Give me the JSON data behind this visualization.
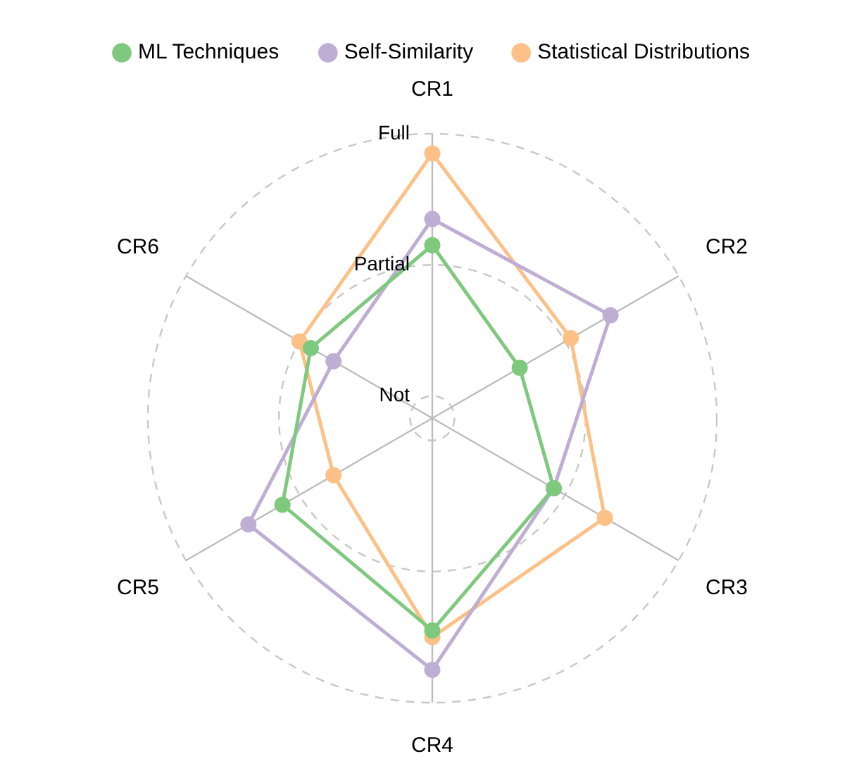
{
  "chart_data": {
    "type": "radar",
    "categories": [
      "CR1",
      "CR2",
      "CR3",
      "CR4",
      "CR5",
      "CR6"
    ],
    "series": [
      {
        "name": "ML Techniques",
        "color": "#7fc97f",
        "values": [
          1.15,
          0.6,
          0.9,
          1.45,
          1.15,
          0.9
        ]
      },
      {
        "name": "Self-Similarity",
        "color": "#beaed4",
        "values": [
          1.35,
          1.4,
          0.9,
          1.75,
          1.45,
          0.7
        ]
      },
      {
        "name": "Statistical Distributions",
        "color": "#fdc086",
        "values": [
          1.85,
          1.05,
          1.35,
          1.5,
          0.7,
          1.0
        ]
      }
    ],
    "ylim": [
      -0.17,
      2
    ],
    "yticks": [
      {
        "value": 0,
        "label": "Not"
      },
      {
        "value": 1,
        "label": "Partial"
      },
      {
        "value": 2,
        "label": "Full"
      }
    ],
    "grid": true,
    "legend": "top",
    "marker": "circle",
    "line_style": "solid"
  }
}
